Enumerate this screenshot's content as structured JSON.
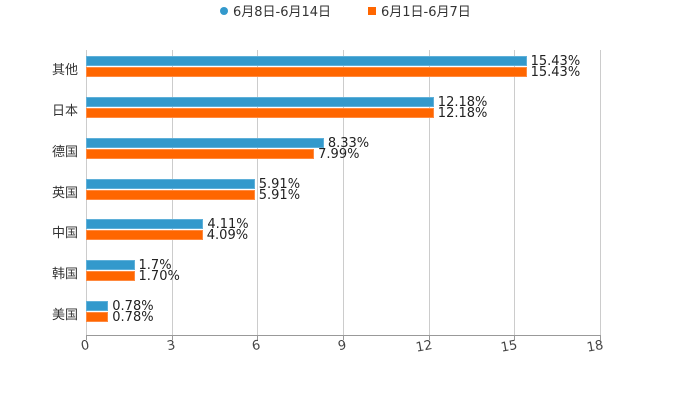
{
  "chart_data": {
    "type": "bar",
    "orientation": "horizontal",
    "title": "",
    "xlabel": "",
    "ylabel": "",
    "xlim": [
      0,
      18
    ],
    "x_ticks": [
      "0",
      "3",
      "6",
      "9",
      "12",
      "15",
      "18"
    ],
    "grid": true,
    "legend_position": "top",
    "categories": [
      "其他",
      "日本",
      "德国",
      "英国",
      "中国",
      "韩国",
      "美国"
    ],
    "series": [
      {
        "name": "6月8日-6月14日",
        "color": "#3399cc",
        "values": [
          15.43,
          12.18,
          8.33,
          5.91,
          4.11,
          1.7,
          0.78
        ],
        "labels": [
          "15.43%",
          "12.18%",
          "8.33%",
          "5.91%",
          "4.11%",
          "1.7%",
          "0.78%"
        ]
      },
      {
        "name": "6月1日-6月7日",
        "color": "#ff6600",
        "values": [
          15.43,
          12.18,
          7.99,
          5.91,
          4.09,
          1.7,
          0.78
        ],
        "labels": [
          "15.43%",
          "12.18%",
          "7.99%",
          "5.91%",
          "4.09%",
          "1.70%",
          "0.78%"
        ]
      }
    ]
  },
  "legend": {
    "items": [
      {
        "label": "6月8日-6月14日",
        "color": "#3399cc"
      },
      {
        "label": "6月1日-6月7日",
        "color": "#ff6600"
      }
    ]
  }
}
